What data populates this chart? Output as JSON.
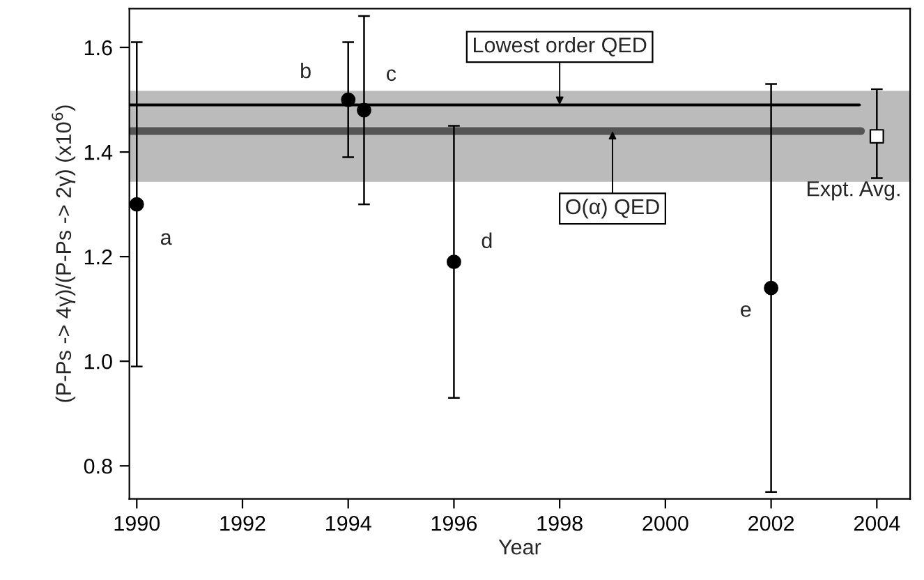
{
  "chart_data": {
    "type": "scatter",
    "xlabel": "Year",
    "ylabel": "(P-Ps -> 4γ)/(P-Ps -> 2γ) (x10$^{6}$)",
    "xlim": [
      1989.86,
      2004.63
    ],
    "ylim": [
      0.737,
      1.674
    ],
    "xticks": [
      1990,
      1992,
      1994,
      1996,
      1998,
      2000,
      2002,
      2004
    ],
    "yticks": [
      0.8,
      {
        "value": 1.0,
        "label": "1.0"
      },
      1.2,
      1.4,
      1.6
    ],
    "grid": false,
    "legend": false,
    "bands": [
      {
        "axis": "y",
        "from": 1.343,
        "to": 1.517,
        "color": "#bbbbbb"
      }
    ],
    "series": [
      {
        "type": "line",
        "color": "#000000",
        "x": [
          1989.86,
          2003.67
        ],
        "values": [
          1.49,
          1.49
        ],
        "marker": "none",
        "line_style": "solid"
      },
      {
        "type": "line",
        "color": "#555555",
        "x": [
          1989.86,
          2003.7
        ],
        "values": [
          1.44,
          1.44
        ],
        "marker": "none",
        "line_style": "solid"
      },
      {
        "color": "#000000",
        "marker": "circle",
        "x": [
          1990,
          1994,
          1994.3,
          1996,
          2002
        ],
        "values": [
          1.3,
          1.5,
          1.48,
          1.19,
          1.14
        ],
        "errors": [
          [
            0.99,
            1.61
          ],
          [
            1.39,
            1.61
          ],
          [
            1.3,
            1.66
          ],
          [
            0.93,
            1.45
          ],
          [
            0.75,
            1.53
          ]
        ]
      },
      {
        "color": "#ffffff",
        "marker": "square",
        "x": [
          2004
        ],
        "values": [
          1.43
        ],
        "errors": [
          [
            1.35,
            1.52
          ]
        ]
      }
    ],
    "annotations": [
      {
        "text": "a",
        "x": 1990,
        "y": 1.3
      },
      {
        "text": "b",
        "x": 1994,
        "y": 1.5
      },
      {
        "text": "c",
        "x": 1994.3,
        "y": 1.48
      },
      {
        "text": "d",
        "x": 1996,
        "y": 1.19
      },
      {
        "text": "e",
        "x": 2002,
        "y": 1.14
      },
      {
        "text": "Expt. Avg.",
        "x": 2004,
        "y": 1.43
      },
      {
        "text": "Lowest order QED",
        "x": 1998,
        "y": 1.49
      },
      {
        "text": "O(α) QED",
        "x": 1999,
        "y": 1.44
      }
    ]
  }
}
